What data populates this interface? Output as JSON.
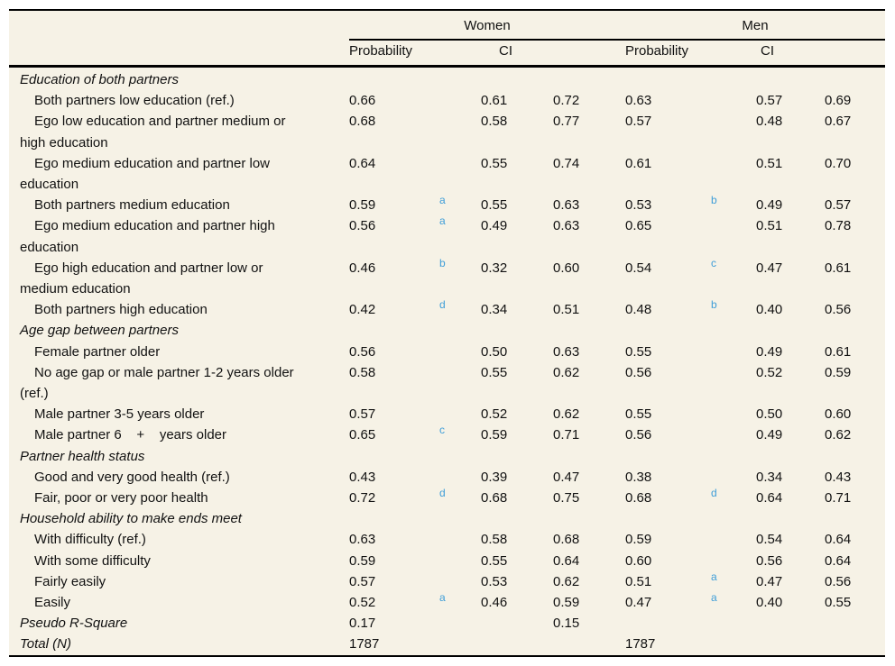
{
  "table": {
    "background_color": "#f6f2e6",
    "accent_color": "#3f9ed8",
    "group_headers": {
      "women": "Women",
      "men": "Men"
    },
    "col_headers": {
      "probability": "Probability",
      "ci": "CI"
    },
    "rows": [
      {
        "style": "section",
        "label": "Education of both partners"
      },
      {
        "style": "data",
        "label": "Both partners low education (ref.)",
        "w_prob": "0.66",
        "w_sup": "",
        "w_lo": "0.61",
        "w_hi": "0.72",
        "m_prob": "0.63",
        "m_sup": "",
        "m_lo": "0.57",
        "m_hi": "0.69"
      },
      {
        "style": "data",
        "label": "Ego low education and partner medium or\nhigh education",
        "w_prob": "0.68",
        "w_sup": "",
        "w_lo": "0.58",
        "w_hi": "0.77",
        "m_prob": "0.57",
        "m_sup": "",
        "m_lo": "0.48",
        "m_hi": "0.67"
      },
      {
        "style": "data",
        "label": "Ego medium education and partner low\neducation",
        "w_prob": "0.64",
        "w_sup": "",
        "w_lo": "0.55",
        "w_hi": "0.74",
        "m_prob": "0.61",
        "m_sup": "",
        "m_lo": "0.51",
        "m_hi": "0.70"
      },
      {
        "style": "data",
        "label": "Both partners medium education",
        "w_prob": "0.59",
        "w_sup": "a",
        "w_lo": "0.55",
        "w_hi": "0.63",
        "m_prob": "0.53",
        "m_sup": "b",
        "m_lo": "0.49",
        "m_hi": "0.57"
      },
      {
        "style": "data",
        "label": "Ego medium education and partner high\neducation",
        "w_prob": "0.56",
        "w_sup": "a",
        "w_lo": "0.49",
        "w_hi": "0.63",
        "m_prob": "0.65",
        "m_sup": "",
        "m_lo": "0.51",
        "m_hi": "0.78"
      },
      {
        "style": "data",
        "label": "Ego high education and partner low or\nmedium education",
        "w_prob": "0.46",
        "w_sup": "b",
        "w_lo": "0.32",
        "w_hi": "0.60",
        "m_prob": "0.54",
        "m_sup": "c",
        "m_lo": "0.47",
        "m_hi": "0.61"
      },
      {
        "style": "data",
        "label": "Both partners high education",
        "w_prob": "0.42",
        "w_sup": "d",
        "w_lo": "0.34",
        "w_hi": "0.51",
        "m_prob": "0.48",
        "m_sup": "b",
        "m_lo": "0.40",
        "m_hi": "0.56"
      },
      {
        "style": "section",
        "label": "Age gap between partners"
      },
      {
        "style": "data",
        "label": "Female partner older",
        "w_prob": "0.56",
        "w_sup": "",
        "w_lo": "0.50",
        "w_hi": "0.63",
        "m_prob": "0.55",
        "m_sup": "",
        "m_lo": "0.49",
        "m_hi": "0.61"
      },
      {
        "style": "data",
        "label": "No age gap or male partner 1-2 years older\n(ref.)",
        "w_prob": "0.58",
        "w_sup": "",
        "w_lo": "0.55",
        "w_hi": "0.62",
        "m_prob": "0.56",
        "m_sup": "",
        "m_lo": "0.52",
        "m_hi": "0.59"
      },
      {
        "style": "data",
        "label": "Male partner 3-5 years older",
        "w_prob": "0.57",
        "w_sup": "",
        "w_lo": "0.52",
        "w_hi": "0.62",
        "m_prob": "0.55",
        "m_sup": "",
        "m_lo": "0.50",
        "m_hi": "0.60"
      },
      {
        "style": "data",
        "label": "Male partner 6    +    years older",
        "w_prob": "0.65",
        "w_sup": "c",
        "w_lo": "0.59",
        "w_hi": "0.71",
        "m_prob": "0.56",
        "m_sup": "",
        "m_lo": "0.49",
        "m_hi": "0.62"
      },
      {
        "style": "section",
        "label": "Partner health status"
      },
      {
        "style": "data",
        "label": "Good and very good health (ref.)",
        "w_prob": "0.43",
        "w_sup": "",
        "w_lo": "0.39",
        "w_hi": "0.47",
        "m_prob": "0.38",
        "m_sup": "",
        "m_lo": "0.34",
        "m_hi": "0.43"
      },
      {
        "style": "data",
        "label": "Fair, poor or very poor health",
        "w_prob": "0.72",
        "w_sup": "d",
        "w_lo": "0.68",
        "w_hi": "0.75",
        "m_prob": "0.68",
        "m_sup": "d",
        "m_lo": "0.64",
        "m_hi": "0.71"
      },
      {
        "style": "section",
        "label": "Household ability to make ends meet"
      },
      {
        "style": "data",
        "label": "With difficulty (ref.)",
        "w_prob": "0.63",
        "w_sup": "",
        "w_lo": "0.58",
        "w_hi": "0.68",
        "m_prob": "0.59",
        "m_sup": "",
        "m_lo": "0.54",
        "m_hi": "0.64"
      },
      {
        "style": "data",
        "label": "With some difficulty",
        "w_prob": "0.59",
        "w_sup": "",
        "w_lo": "0.55",
        "w_hi": "0.64",
        "m_prob": "0.60",
        "m_sup": "",
        "m_lo": "0.56",
        "m_hi": "0.64"
      },
      {
        "style": "data",
        "label": "Fairly easily",
        "w_prob": "0.57",
        "w_sup": "",
        "w_lo": "0.53",
        "w_hi": "0.62",
        "m_prob": "0.51",
        "m_sup": "a",
        "m_lo": "0.47",
        "m_hi": "0.56"
      },
      {
        "style": "data",
        "label": "Easily",
        "w_prob": "0.52",
        "w_sup": "a",
        "w_lo": "0.46",
        "w_hi": "0.59",
        "m_prob": "0.47",
        "m_sup": "a",
        "m_lo": "0.40",
        "m_hi": "0.55"
      },
      {
        "style": "summary",
        "label": "Pseudo R-Square",
        "w_prob": "0.17",
        "w_sup": "",
        "w_lo": "",
        "w_hi": "0.15",
        "m_prob": "",
        "m_sup": "",
        "m_lo": "",
        "m_hi": ""
      },
      {
        "style": "summary",
        "label": "Total (N)",
        "w_prob": "1787",
        "w_sup": "",
        "w_lo": "",
        "w_hi": "",
        "m_prob": "1787",
        "m_sup": "",
        "m_lo": "",
        "m_hi": ""
      }
    ]
  }
}
